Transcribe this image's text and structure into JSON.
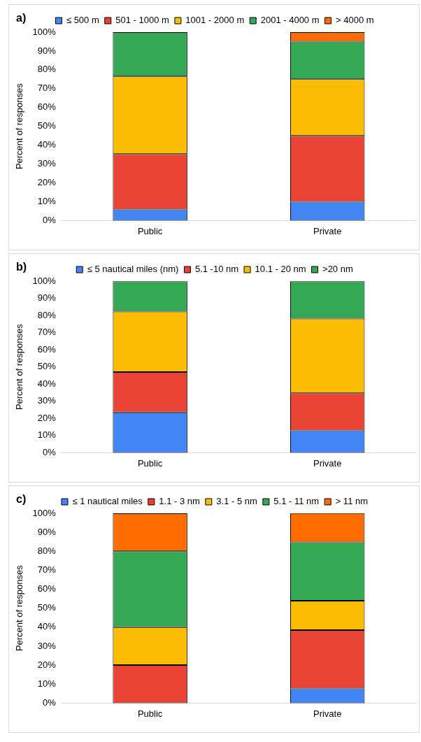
{
  "chart_data": [
    {
      "type": "bar",
      "stacked": true,
      "title": "a)",
      "ylabel": "Percent of responses",
      "categories": [
        "Public",
        "Private"
      ],
      "legend": "top",
      "grid": false,
      "ylim": [
        0,
        100
      ],
      "yticks": [
        {
          "value": 0,
          "label": "0%"
        },
        {
          "value": 10,
          "label": "10%"
        },
        {
          "value": 20,
          "label": "20%"
        },
        {
          "value": 30,
          "label": "30%"
        },
        {
          "value": 40,
          "label": "40%"
        },
        {
          "value": 50,
          "label": "50%"
        },
        {
          "value": 60,
          "label": "60%"
        },
        {
          "value": 70,
          "label": "70%"
        },
        {
          "value": 80,
          "label": "80%"
        },
        {
          "value": 90,
          "label": "90%"
        },
        {
          "value": 100,
          "label": "100%"
        }
      ],
      "series": [
        {
          "name": "≤ 500 m",
          "color": "#4285f4",
          "values": [
            5.9,
            10
          ]
        },
        {
          "name": "501 - 1000 m",
          "color": "#ea4335",
          "values": [
            29.4,
            35
          ]
        },
        {
          "name": "1001 - 2000 m",
          "color": "#fbbc04",
          "values": [
            41.2,
            30
          ]
        },
        {
          "name": "2001 - 4000 m",
          "color": "#34a853",
          "values": [
            23.5,
            20
          ]
        },
        {
          "name": "> 4000 m",
          "color": "#ff6d01",
          "values": [
            0,
            5
          ]
        }
      ]
    },
    {
      "type": "bar",
      "stacked": true,
      "title": "b)",
      "ylabel": "Percent of responses",
      "categories": [
        "Public",
        "Private"
      ],
      "legend": "top",
      "grid": false,
      "ylim": [
        0,
        100
      ],
      "yticks": [
        {
          "value": 0,
          "label": "0%"
        },
        {
          "value": 10,
          "label": "10%"
        },
        {
          "value": 20,
          "label": "20%"
        },
        {
          "value": 30,
          "label": "30%"
        },
        {
          "value": 40,
          "label": "40%"
        },
        {
          "value": 50,
          "label": "50%"
        },
        {
          "value": 60,
          "label": "60%"
        },
        {
          "value": 70,
          "label": "70%"
        },
        {
          "value": 80,
          "label": "80%"
        },
        {
          "value": 90,
          "label": "90%"
        },
        {
          "value": 100,
          "label": "100%"
        }
      ],
      "series": [
        {
          "name": "≤ 5 nautical miles (nm)",
          "color": "#4285f4",
          "values": [
            23.5,
            13
          ]
        },
        {
          "name": "5.1 -10 nm",
          "color": "#ea4335",
          "values": [
            23.5,
            21.7
          ]
        },
        {
          "name": "10.1 - 20 nm",
          "color": "#fbbc04",
          "values": [
            35.3,
            43.5
          ]
        },
        {
          "name": ">20 nm",
          "color": "#34a853",
          "values": [
            17.6,
            21.7
          ]
        }
      ]
    },
    {
      "type": "bar",
      "stacked": true,
      "title": "c)",
      "ylabel": "Percent of responses",
      "categories": [
        "Public",
        "Private"
      ],
      "legend": "top",
      "grid": false,
      "ylim": [
        0,
        100
      ],
      "yticks": [
        {
          "value": 0,
          "label": "0%"
        },
        {
          "value": 10,
          "label": "10%"
        },
        {
          "value": 20,
          "label": "20%"
        },
        {
          "value": 30,
          "label": "30%"
        },
        {
          "value": 40,
          "label": "40%"
        },
        {
          "value": 50,
          "label": "50%"
        },
        {
          "value": 60,
          "label": "60%"
        },
        {
          "value": 70,
          "label": "70%"
        },
        {
          "value": 80,
          "label": "80%"
        },
        {
          "value": 90,
          "label": "90%"
        },
        {
          "value": 100,
          "label": "100%"
        }
      ],
      "series": [
        {
          "name": "≤ 1 nautical miles",
          "color": "#4285f4",
          "values": [
            0,
            7.7
          ]
        },
        {
          "name": "1.1 - 3 nm",
          "color": "#ea4335",
          "values": [
            20,
            30.8
          ]
        },
        {
          "name": "3.1 - 5 nm",
          "color": "#fbbc04",
          "values": [
            20,
            15.4
          ]
        },
        {
          "name": "5.1 - 11 nm",
          "color": "#34a853",
          "values": [
            40,
            30.8
          ]
        },
        {
          "name": "> 11 nm",
          "color": "#ff6d01",
          "values": [
            20,
            15.4
          ]
        }
      ]
    }
  ]
}
